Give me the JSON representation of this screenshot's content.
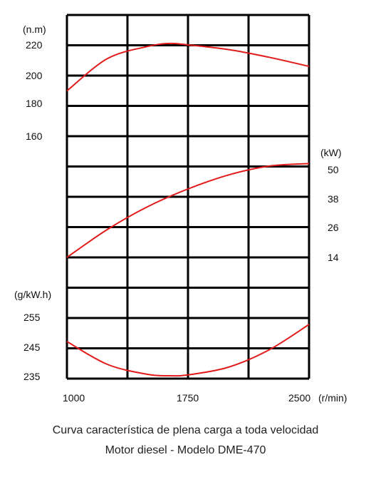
{
  "chart_data": {
    "type": "line",
    "x_range": [
      1000,
      2500
    ],
    "x_tick_labels": [
      "1000",
      "1750",
      "2500"
    ],
    "x_unit": "(r/min)",
    "panels": [
      {
        "name": "torque",
        "unit": "(n.m)",
        "tick_labels": [
          "220",
          "200",
          "180",
          "160"
        ],
        "x": [
          1000,
          1250,
          1500,
          1640,
          1750,
          2000,
          2250,
          2500
        ],
        "y": [
          190,
          211,
          219,
          221,
          220,
          217,
          212,
          206
        ]
      },
      {
        "name": "power",
        "unit": "(kW)",
        "tick_labels": [
          "50",
          "38",
          "26",
          "14"
        ],
        "x": [
          1000,
          1250,
          1500,
          1750,
          2000,
          2250,
          2500
        ],
        "y": [
          14,
          25,
          34,
          41,
          46.5,
          50,
          51
        ]
      },
      {
        "name": "fuel consumption",
        "unit": "(g/kW.h)",
        "tick_labels": [
          "255",
          "245",
          "235"
        ],
        "x": [
          1000,
          1250,
          1500,
          1640,
          1750,
          2000,
          2250,
          2500
        ],
        "y": [
          247,
          239,
          235.5,
          235,
          235.3,
          238,
          244,
          253
        ]
      }
    ],
    "line_color": "#e11b1b",
    "grid": true
  },
  "caption": {
    "line1": "Curva característica de plena carga a toda velocidad",
    "line2": "Motor diesel - Modelo DME-470"
  }
}
